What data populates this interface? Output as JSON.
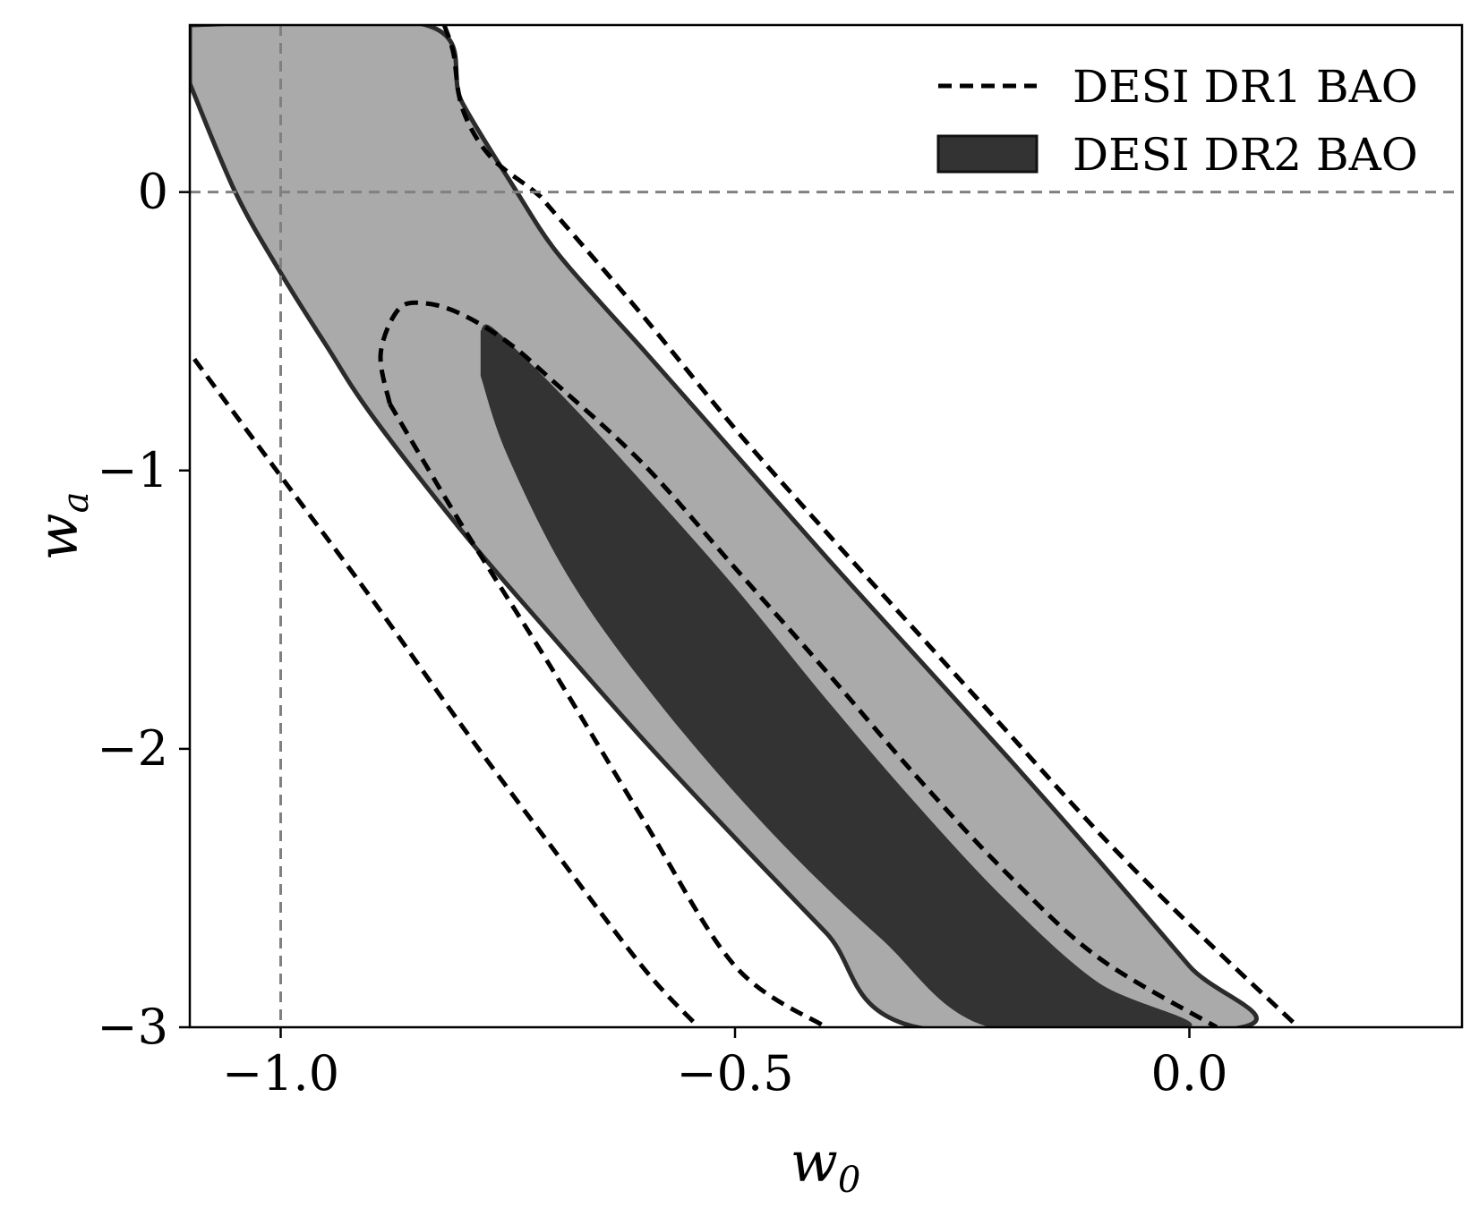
{
  "chart_data": {
    "type": "contour",
    "xlabel": {
      "base": "w",
      "sub": "0"
    },
    "ylabel": {
      "base": "w",
      "sub": "a"
    },
    "xlim": [
      -1.1,
      0.3
    ],
    "ylim": [
      -3.0,
      0.6
    ],
    "xticks": [
      {
        "value": -1.0,
        "label": "−1.0"
      },
      {
        "value": -0.5,
        "label": "−0.5"
      },
      {
        "value": 0.0,
        "label": "0.0"
      }
    ],
    "yticks": [
      {
        "value": 0,
        "label": "0"
      },
      {
        "value": -1,
        "label": "−1"
      },
      {
        "value": -2,
        "label": "−2"
      },
      {
        "value": -3,
        "label": "−3"
      }
    ],
    "reference_lines": {
      "w0": -1.0,
      "wa": 0.0,
      "color": "#808080",
      "style": "dashed"
    },
    "legend": {
      "position": "upper-right",
      "entries": [
        {
          "label": "DESI DR1 BAO",
          "style": "dashed-line",
          "color": "#000000"
        },
        {
          "label": "DESI DR2 BAO",
          "style": "filled",
          "color": "#333333"
        }
      ]
    },
    "series": [
      {
        "name": "DESI DR2 BAO",
        "level": "95%",
        "kind": "filled",
        "color": "#aaaaaa",
        "edge": "#2b2b2b",
        "points": [
          [
            -1.1,
            0.39
          ],
          [
            -1.05,
            0.0
          ],
          [
            -1.0,
            -0.29
          ],
          [
            -0.95,
            -0.55
          ],
          [
            -0.9,
            -0.8
          ],
          [
            -0.8,
            -1.22
          ],
          [
            -0.7,
            -1.6
          ],
          [
            -0.6,
            -1.97
          ],
          [
            -0.5,
            -2.32
          ],
          [
            -0.4,
            -2.66
          ],
          [
            -0.3,
            -3.0
          ],
          [
            0.058,
            -3.0
          ],
          [
            0.0,
            -2.78
          ],
          [
            -0.1,
            -2.4
          ],
          [
            -0.2,
            -2.03
          ],
          [
            -0.3,
            -1.67
          ],
          [
            -0.4,
            -1.31
          ],
          [
            -0.5,
            -0.94
          ],
          [
            -0.6,
            -0.57
          ],
          [
            -0.65,
            -0.39
          ],
          [
            -0.7,
            -0.2
          ],
          [
            -0.74,
            0.0
          ],
          [
            -0.8,
            0.32
          ],
          [
            -0.84,
            0.6
          ],
          [
            -1.1,
            0.6
          ]
        ]
      },
      {
        "name": "DESI DR2 BAO",
        "level": "68%",
        "kind": "filled",
        "color": "#333333",
        "points": [
          [
            -0.78,
            -0.5
          ],
          [
            -0.77,
            -0.48
          ],
          [
            -0.73,
            -0.6
          ],
          [
            -0.67,
            -0.8
          ],
          [
            -0.6,
            -1.05
          ],
          [
            -0.5,
            -1.42
          ],
          [
            -0.4,
            -1.82
          ],
          [
            -0.3,
            -2.2
          ],
          [
            -0.2,
            -2.55
          ],
          [
            -0.1,
            -2.84
          ],
          [
            0.0,
            -3.0
          ],
          [
            -0.22,
            -3.0
          ],
          [
            -0.34,
            -2.68
          ],
          [
            -0.46,
            -2.3
          ],
          [
            -0.58,
            -1.85
          ],
          [
            -0.68,
            -1.4
          ],
          [
            -0.75,
            -0.95
          ],
          [
            -0.78,
            -0.66
          ]
        ]
      },
      {
        "name": "DESI DR1 BAO",
        "level": "68%",
        "kind": "dashed",
        "color": "#000000",
        "points": [
          [
            -0.88,
            -0.76
          ],
          [
            -0.89,
            -0.58
          ],
          [
            -0.87,
            -0.42
          ],
          [
            -0.84,
            -0.4
          ],
          [
            -0.8,
            -0.44
          ],
          [
            -0.75,
            -0.54
          ],
          [
            -0.7,
            -0.68
          ],
          [
            -0.6,
            -0.98
          ],
          [
            -0.5,
            -1.35
          ],
          [
            -0.4,
            -1.72
          ],
          [
            -0.3,
            -2.1
          ],
          [
            -0.2,
            -2.45
          ],
          [
            -0.1,
            -2.75
          ],
          [
            0.03,
            -3.0
          ]
        ]
      },
      {
        "name": "DESI DR1 BAO",
        "level": "68%",
        "kind": "dashed",
        "color": "#000000",
        "points": [
          [
            -0.88,
            -0.76
          ],
          [
            -0.8,
            -1.2
          ],
          [
            -0.7,
            -1.72
          ],
          [
            -0.6,
            -2.26
          ],
          [
            -0.5,
            -2.78
          ],
          [
            -0.4,
            -3.0
          ]
        ]
      },
      {
        "name": "DESI DR1 BAO",
        "level": "95%",
        "kind": "dashed",
        "color": "#000000",
        "points": [
          [
            -0.82,
            0.6
          ],
          [
            -0.81,
            0.5
          ],
          [
            -0.8,
            0.3
          ],
          [
            -0.77,
            0.13
          ],
          [
            -0.72,
            0.0
          ],
          [
            -0.7,
            -0.07
          ],
          [
            -0.6,
            -0.45
          ],
          [
            -0.5,
            -0.85
          ],
          [
            -0.4,
            -1.22
          ],
          [
            -0.3,
            -1.58
          ],
          [
            -0.2,
            -1.94
          ],
          [
            -0.1,
            -2.3
          ],
          [
            0.0,
            -2.63
          ],
          [
            0.12,
            -3.0
          ]
        ]
      },
      {
        "name": "DESI DR1 BAO",
        "level": "95%",
        "kind": "dashed",
        "color": "#000000",
        "points": [
          [
            -1.095,
            -0.6
          ],
          [
            -1.0,
            -1.02
          ],
          [
            -0.9,
            -1.46
          ],
          [
            -0.8,
            -1.92
          ],
          [
            -0.7,
            -2.36
          ],
          [
            -0.6,
            -2.79
          ],
          [
            -0.54,
            -3.0
          ]
        ]
      }
    ]
  }
}
